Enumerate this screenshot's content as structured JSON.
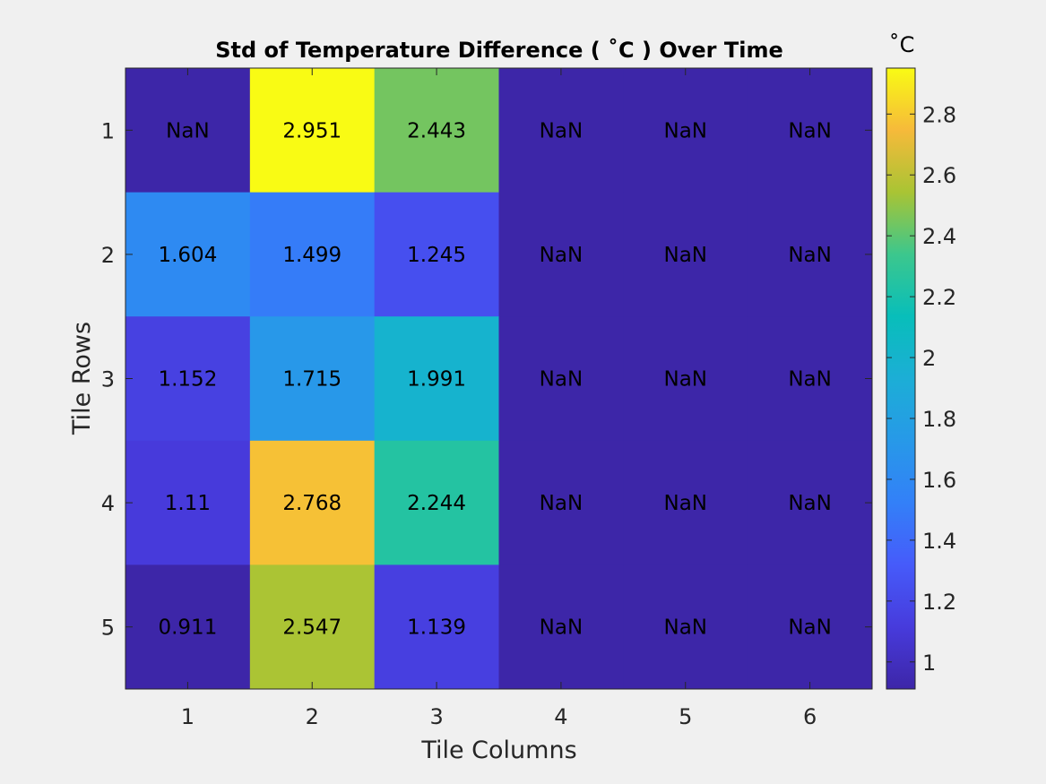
{
  "chart_data": {
    "type": "heatmap",
    "title": "Std of Temperature Difference ( ˚C ) Over Time",
    "xlabel": "Tile Columns",
    "ylabel": "Tile Rows",
    "x_categories": [
      "1",
      "2",
      "3",
      "4",
      "5",
      "6"
    ],
    "y_categories": [
      "1",
      "2",
      "3",
      "4",
      "5"
    ],
    "values": [
      [
        null,
        2.951,
        2.443,
        null,
        null,
        null
      ],
      [
        1.604,
        1.499,
        1.245,
        null,
        null,
        null
      ],
      [
        1.152,
        1.715,
        1.991,
        null,
        null,
        null
      ],
      [
        1.11,
        2.768,
        2.244,
        null,
        null,
        null
      ],
      [
        0.911,
        2.547,
        1.139,
        null,
        null,
        null
      ]
    ],
    "cell_labels": [
      [
        "NaN",
        "2.951",
        "2.443",
        "NaN",
        "NaN",
        "NaN"
      ],
      [
        "1.604",
        "1.499",
        "1.245",
        "NaN",
        "NaN",
        "NaN"
      ],
      [
        "1.152",
        "1.715",
        "1.991",
        "NaN",
        "NaN",
        "NaN"
      ],
      [
        "1.11",
        "2.768",
        "2.244",
        "NaN",
        "NaN",
        "NaN"
      ],
      [
        "0.911",
        "2.547",
        "1.139",
        "NaN",
        "NaN",
        "NaN"
      ]
    ],
    "nan_color": "#3d26a8",
    "colormap": "parula",
    "clim": [
      0.911,
      2.951
    ],
    "colorbar": {
      "title": "˚C",
      "ticks": [
        1,
        1.2,
        1.4,
        1.6,
        1.8,
        2,
        2.2,
        2.4,
        2.6,
        2.8
      ],
      "tick_labels": [
        "1",
        "1.2",
        "1.4",
        "1.6",
        "1.8",
        "2",
        "2.2",
        "2.4",
        "2.6",
        "2.8"
      ]
    },
    "grid": false
  }
}
